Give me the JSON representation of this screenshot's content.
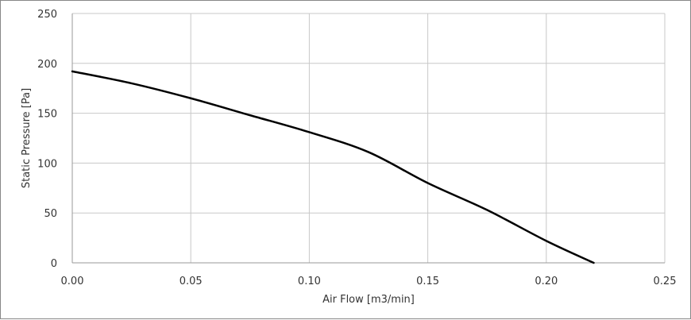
{
  "chart_data": {
    "type": "line",
    "title": "",
    "xlabel": "Air Flow [m3/min]",
    "ylabel": "Static Pressure [Pa]",
    "xlim": [
      0,
      0.25
    ],
    "ylim": [
      0,
      250
    ],
    "x_ticks": [
      "0.00",
      "0.05",
      "0.10",
      "0.15",
      "0.20",
      "0.25"
    ],
    "y_ticks": [
      "0",
      "50",
      "100",
      "150",
      "200",
      "250"
    ],
    "grid": true,
    "legend": "none",
    "series": [
      {
        "color": "#000000",
        "x": [
          0.0,
          0.025,
          0.05,
          0.075,
          0.1,
          0.125,
          0.15,
          0.175,
          0.2,
          0.22
        ],
        "y": [
          192,
          180,
          165,
          148,
          131,
          111,
          80,
          53,
          22,
          0
        ]
      }
    ]
  }
}
